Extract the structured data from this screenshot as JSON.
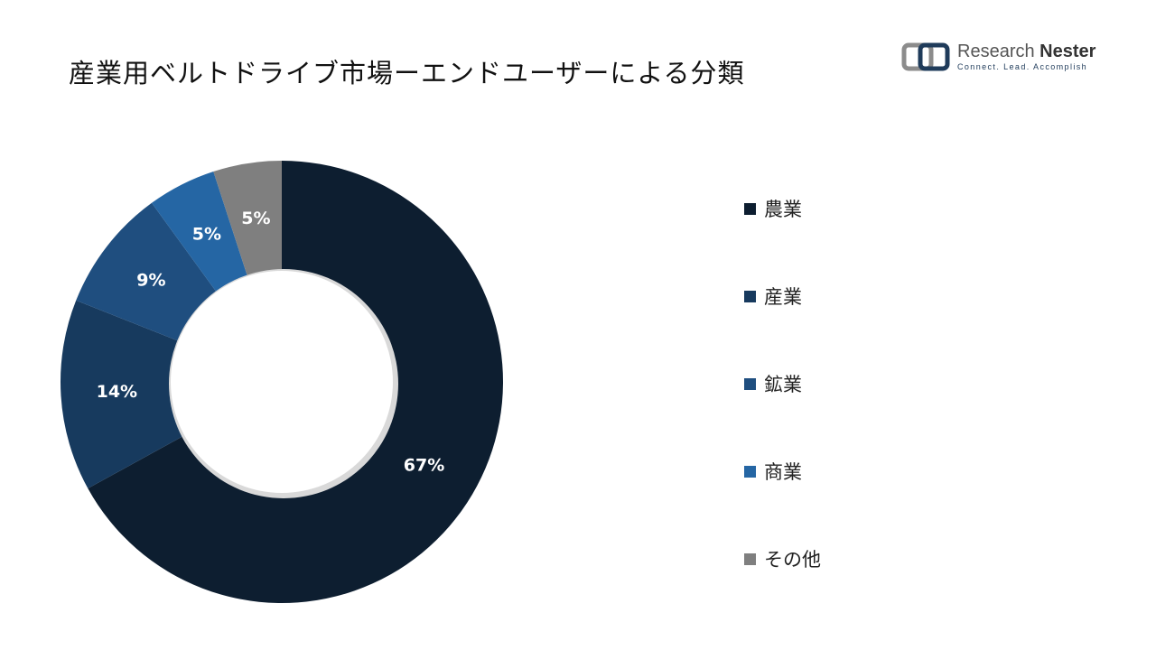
{
  "header": {
    "title": "産業用ベルトドライブ市場ーエンドユーザーによる分類"
  },
  "logo": {
    "name_part1": "Research ",
    "name_part2": "Nester",
    "tagline": "Connect. Lead. Accomplish"
  },
  "chart_data": {
    "type": "pie",
    "style": "donut",
    "categories": [
      "農業",
      "産業",
      "鉱業",
      "商業",
      "その他"
    ],
    "values": [
      67,
      14,
      9,
      5,
      5
    ],
    "value_labels": [
      "67%",
      "14%",
      "9%",
      "5%",
      "5%"
    ],
    "colors": [
      "#0d1e30",
      "#173a5e",
      "#1f4e7f",
      "#2566a4",
      "#7f7f7f"
    ],
    "legend_position": "right"
  },
  "legend": {
    "items": [
      {
        "label": "農業",
        "color": "#0d1e30"
      },
      {
        "label": "産業",
        "color": "#173a5e"
      },
      {
        "label": "鉱業",
        "color": "#1f4e7f"
      },
      {
        "label": "商業",
        "color": "#2566a4"
      },
      {
        "label": "その他",
        "color": "#7f7f7f"
      }
    ]
  }
}
